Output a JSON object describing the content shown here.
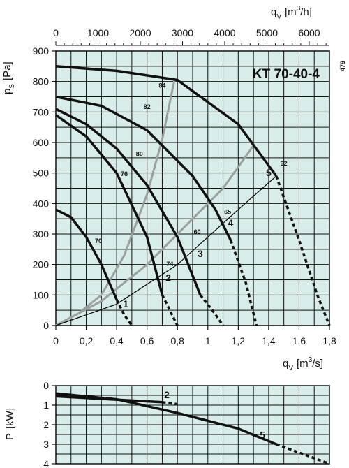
{
  "chart_data": [
    {
      "type": "line",
      "title": "KT 70-40-4",
      "side_label": "479",
      "xlabel": "q",
      "xlabel_sub": "V",
      "xlabel_unit": "[m",
      "xlabel_unit_sup": "3",
      "xlabel_unit_end": "/s]",
      "ylabel": "p",
      "ylabel_sub": "S",
      "ylabel_unit": "[Pa]",
      "top_xlabel": "q",
      "top_xlabel_sub": "V",
      "top_xlabel_unit": "[m",
      "top_xlabel_unit_sup": "3",
      "top_xlabel_unit_end": "/h]",
      "xlim": [
        0,
        1.8
      ],
      "ylim": [
        0,
        900
      ],
      "top_xlim": [
        0,
        6480
      ],
      "x_ticks": [
        "0",
        "0,2",
        "0,4",
        "0,6",
        "0,8",
        "1",
        "1,2",
        "1,4",
        "1,6",
        "1,8"
      ],
      "y_ticks": [
        "0",
        "100",
        "200",
        "300",
        "400",
        "500",
        "600",
        "700",
        "800",
        "900"
      ],
      "top_ticks": [
        "0",
        "1000",
        "2000",
        "3000",
        "4000",
        "5000",
        "6000"
      ],
      "grid": true,
      "fan_curves": [
        {
          "points": [
            [
              0,
              380
            ],
            [
              0.1,
              355
            ],
            [
              0.2,
              290
            ],
            [
              0.3,
              200
            ],
            [
              0.4,
              85
            ]
          ],
          "dashed": [
            [
              0.4,
              85
            ],
            [
              0.45,
              35
            ],
            [
              0.5,
              0
            ]
          ]
        },
        {
          "points": [
            [
              0,
              690
            ],
            [
              0.2,
              620
            ],
            [
              0.4,
              500
            ],
            [
              0.6,
              290
            ],
            [
              0.7,
              100
            ]
          ],
          "dashed": [
            [
              0.7,
              100
            ],
            [
              0.75,
              50
            ],
            [
              0.8,
              0
            ]
          ]
        },
        {
          "points": [
            [
              0,
              710
            ],
            [
              0.2,
              660
            ],
            [
              0.4,
              580
            ],
            [
              0.6,
              460
            ],
            [
              0.8,
              290
            ],
            [
              0.95,
              100
            ]
          ],
          "dashed": [
            [
              0.95,
              100
            ],
            [
              1.03,
              50
            ],
            [
              1.1,
              0
            ]
          ]
        },
        {
          "points": [
            [
              0,
              750
            ],
            [
              0.3,
              720
            ],
            [
              0.6,
              640
            ],
            [
              0.9,
              490
            ],
            [
              1.05,
              380
            ],
            [
              1.15,
              280
            ]
          ],
          "dashed": [
            [
              1.15,
              280
            ],
            [
              1.25,
              140
            ],
            [
              1.32,
              0
            ]
          ]
        },
        {
          "points": [
            [
              0,
              850
            ],
            [
              0.4,
              835
            ],
            [
              0.8,
              805
            ],
            [
              1.2,
              660
            ],
            [
              1.45,
              490
            ]
          ],
          "dashed": [
            [
              1.45,
              490
            ],
            [
              1.6,
              280
            ],
            [
              1.72,
              100
            ],
            [
              1.8,
              0
            ]
          ]
        }
      ],
      "system_curves": [
        {
          "color": "#9aa0a0",
          "points": [
            [
              0,
              0
            ],
            [
              0.15,
              40
            ],
            [
              0.3,
              100
            ],
            [
              0.45,
              230
            ],
            [
              0.6,
              430
            ],
            [
              0.7,
              610
            ],
            [
              0.78,
              805
            ]
          ]
        },
        {
          "color": "#9aa0a0",
          "points": [
            [
              0,
              0
            ],
            [
              0.3,
              80
            ],
            [
              0.6,
              200
            ],
            [
              0.9,
              350
            ],
            [
              1.1,
              450
            ],
            [
              1.3,
              590
            ]
          ]
        },
        {
          "color": "#000000",
          "points": [
            [
              0,
              0
            ],
            [
              0.4,
              70
            ],
            [
              0.8,
              200
            ],
            [
              1.2,
              380
            ],
            [
              1.45,
              490
            ]
          ]
        }
      ],
      "curve_numbers": [
        {
          "label": "1",
          "x": 0.46,
          "y": 60
        },
        {
          "label": "2",
          "x": 0.74,
          "y": 145
        },
        {
          "label": "3",
          "x": 0.95,
          "y": 225
        },
        {
          "label": "4",
          "x": 1.15,
          "y": 325
        },
        {
          "label": "5",
          "x": 1.4,
          "y": 490
        }
      ],
      "efficiency_labels": [
        {
          "label": "84",
          "x": 0.7,
          "y": 780
        },
        {
          "label": "82",
          "x": 0.6,
          "y": 710
        },
        {
          "label": "80",
          "x": 0.55,
          "y": 555
        },
        {
          "label": "76",
          "x": 0.45,
          "y": 490
        },
        {
          "label": "70",
          "x": 0.28,
          "y": 270
        },
        {
          "label": "74",
          "x": 0.75,
          "y": 195
        },
        {
          "label": "60",
          "x": 0.93,
          "y": 300
        },
        {
          "label": "65",
          "x": 1.13,
          "y": 365
        },
        {
          "label": "92",
          "x": 1.5,
          "y": 525
        }
      ]
    },
    {
      "type": "line",
      "ylabel": "P",
      "ylabel_unit": "[kW]",
      "xlim": [
        0,
        1.8
      ],
      "ylim": [
        0,
        4
      ],
      "y_ticks": [
        "0",
        "1",
        "2",
        "3",
        "4"
      ],
      "grid": true,
      "series": [
        {
          "label": "2",
          "points": [
            [
              0,
              0.55
            ],
            [
              0.7,
              0.85
            ]
          ],
          "dashed": [
            [
              0.7,
              0.85
            ],
            [
              0.8,
              0.95
            ]
          ],
          "label_x": 0.73,
          "label_y": 0.65
        },
        {
          "label": "5",
          "points": [
            [
              0,
              0.4
            ],
            [
              0.4,
              0.7
            ],
            [
              0.8,
              1.4
            ],
            [
              1.2,
              2.2
            ],
            [
              1.45,
              3.0
            ]
          ],
          "dashed": [
            [
              1.45,
              3.0
            ],
            [
              1.8,
              4.0
            ]
          ],
          "label_x": 1.36,
          "label_y": 2.7
        }
      ]
    }
  ]
}
